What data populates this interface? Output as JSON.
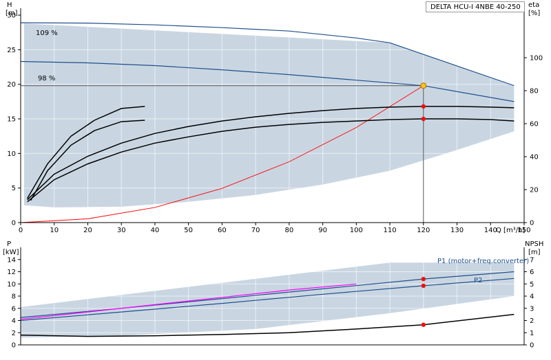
{
  "chart_title": "DELTA HCU-I 4NBE 40-250",
  "chart_data": [
    {
      "type": "line",
      "title": "DELTA HCU-I 4NBE 40-250",
      "ylabel": "H",
      "yunit": "[m]",
      "ylabel_right": "eta",
      "yunit_right": "[%]",
      "xlabel": "Q [m³/h]",
      "xlim": [
        0,
        150
      ],
      "ylim": [
        0,
        31
      ],
      "ylim_right": [
        0,
        130
      ],
      "x_ticks": [
        "0",
        "10",
        "20",
        "30",
        "40",
        "50",
        "60",
        "70",
        "80",
        "90",
        "100",
        "110",
        "120",
        "130",
        "140",
        "150"
      ],
      "y_ticks": [
        "0",
        "5",
        "10",
        "15",
        "20",
        "25",
        "30"
      ],
      "y_ticks_right": [
        "0",
        "20",
        "40",
        "60",
        "80",
        "100"
      ],
      "grid": true,
      "annotations": [
        "109 %",
        "98 %"
      ],
      "duty_point": {
        "x": 120,
        "y": 19.8
      },
      "operating_markers": [
        {
          "x": 120,
          "y": 16.8
        },
        {
          "x": 120,
          "y": 15
        }
      ],
      "envelope": [
        {
          "x": 1,
          "y": 2.5
        },
        {
          "x": 1,
          "y": 28.8
        },
        {
          "x": 110,
          "y": 26
        },
        {
          "x": 147,
          "y": 19.7
        },
        {
          "x": 147,
          "y": 13.2
        },
        {
          "x": 130,
          "y": 10.5
        },
        {
          "x": 110,
          "y": 7.5
        },
        {
          "x": 90,
          "y": 5.5
        },
        {
          "x": 70,
          "y": 4
        },
        {
          "x": 50,
          "y": 3
        },
        {
          "x": 30,
          "y": 2.3
        },
        {
          "x": 10,
          "y": 2.2
        }
      ],
      "series": [
        {
          "name": "109 %",
          "color": "#1f4e8c",
          "x": [
            0,
            20,
            40,
            60,
            80,
            100,
            110,
            147
          ],
          "y": [
            28.9,
            28.85,
            28.6,
            28.2,
            27.7,
            26.7,
            26,
            19.8
          ]
        },
        {
          "name": "98 %",
          "color": "#1f4e8c",
          "x": [
            0,
            20,
            40,
            60,
            80,
            100,
            120,
            147
          ],
          "y": [
            23.3,
            23.1,
            22.7,
            22.1,
            21.4,
            20.6,
            19.8,
            17.5
          ]
        },
        {
          "color": "#ff0000",
          "x": [
            0,
            20,
            40,
            60,
            80,
            100,
            120
          ],
          "y": [
            0,
            0.55,
            2.2,
            4.95,
            8.8,
            13.75,
            19.8
          ]
        },
        {
          "color": "#000000",
          "x": [
            2,
            10,
            20,
            30,
            40,
            50,
            60,
            70,
            80,
            90,
            100,
            110,
            120,
            130,
            140,
            147
          ],
          "y": [
            3.0,
            6.2,
            8.5,
            10.2,
            11.5,
            12.4,
            13.2,
            13.8,
            14.2,
            14.5,
            14.7,
            14.9,
            15.0,
            15.0,
            14.9,
            14.7
          ]
        },
        {
          "color": "#000000",
          "x": [
            2,
            10,
            20,
            30,
            40,
            50,
            60,
            70,
            80,
            90,
            100,
            110,
            120,
            130,
            140,
            147
          ],
          "y": [
            3.3,
            7.0,
            9.6,
            11.5,
            12.9,
            13.9,
            14.7,
            15.3,
            15.8,
            16.2,
            16.5,
            16.7,
            16.8,
            16.8,
            16.7,
            16.6
          ]
        },
        {
          "color": "#000000",
          "x": [
            3,
            8,
            15,
            22,
            30,
            37
          ],
          "y": [
            3.2,
            7.5,
            11.2,
            13.3,
            14.6,
            14.8
          ]
        },
        {
          "color": "#000000",
          "x": [
            2,
            8,
            15,
            22,
            30,
            37
          ],
          "y": [
            3.5,
            8.5,
            12.5,
            14.8,
            16.5,
            16.8
          ]
        }
      ]
    },
    {
      "type": "line",
      "ylabel": "P",
      "yunit": "[kW]",
      "ylabel_right": "NPSH",
      "yunit_right": "[m]",
      "xlim": [
        0,
        150
      ],
      "ylim": [
        0,
        16
      ],
      "ylim_right": [
        0,
        8
      ],
      "y_ticks": [
        "0",
        "2",
        "4",
        "6",
        "8",
        "10",
        "12",
        "14"
      ],
      "y_ticks_right": [
        "0",
        "1",
        "2",
        "3",
        "4",
        "5",
        "6",
        "7"
      ],
      "grid": true,
      "annotations": [
        "P1 (motor+freq.converter)",
        "P2"
      ],
      "operating_markers": [
        {
          "x": 120,
          "y": 10.8
        },
        {
          "x": 120,
          "y": 9.7
        },
        {
          "x": 120,
          "y": 3.3
        }
      ],
      "envelope": [
        {
          "x": 0,
          "y": 1.2
        },
        {
          "x": 0,
          "y": 6.2
        },
        {
          "x": 110,
          "y": 13.5
        },
        {
          "x": 147,
          "y": 13.5
        },
        {
          "x": 147,
          "y": 8.0
        },
        {
          "x": 110,
          "y": 5.2
        },
        {
          "x": 70,
          "y": 2.6
        },
        {
          "x": 30,
          "y": 1.5
        }
      ],
      "series": [
        {
          "name": "P1 (motor+freq.converter)",
          "color": "#1f4e8c",
          "x": [
            0,
            30,
            60,
            90,
            120,
            147
          ],
          "y": [
            4.5,
            6.0,
            7.6,
            9.2,
            10.8,
            12.0
          ]
        },
        {
          "name": "P2",
          "color": "#1f4e8c",
          "x": [
            0,
            30,
            60,
            90,
            120,
            147
          ],
          "y": [
            4.0,
            5.4,
            6.8,
            8.3,
            9.7,
            10.9
          ]
        },
        {
          "color": "#ff00ff",
          "x": [
            0,
            20,
            40,
            60,
            80,
            100
          ],
          "y": [
            4.2,
            5.4,
            6.6,
            7.8,
            9.0,
            10.0
          ]
        },
        {
          "color": "#000000",
          "x": [
            0,
            20,
            40,
            60,
            80,
            100,
            120,
            147
          ],
          "y": [
            1.6,
            1.4,
            1.5,
            1.7,
            2.0,
            2.6,
            3.3,
            5.0
          ]
        }
      ]
    }
  ]
}
